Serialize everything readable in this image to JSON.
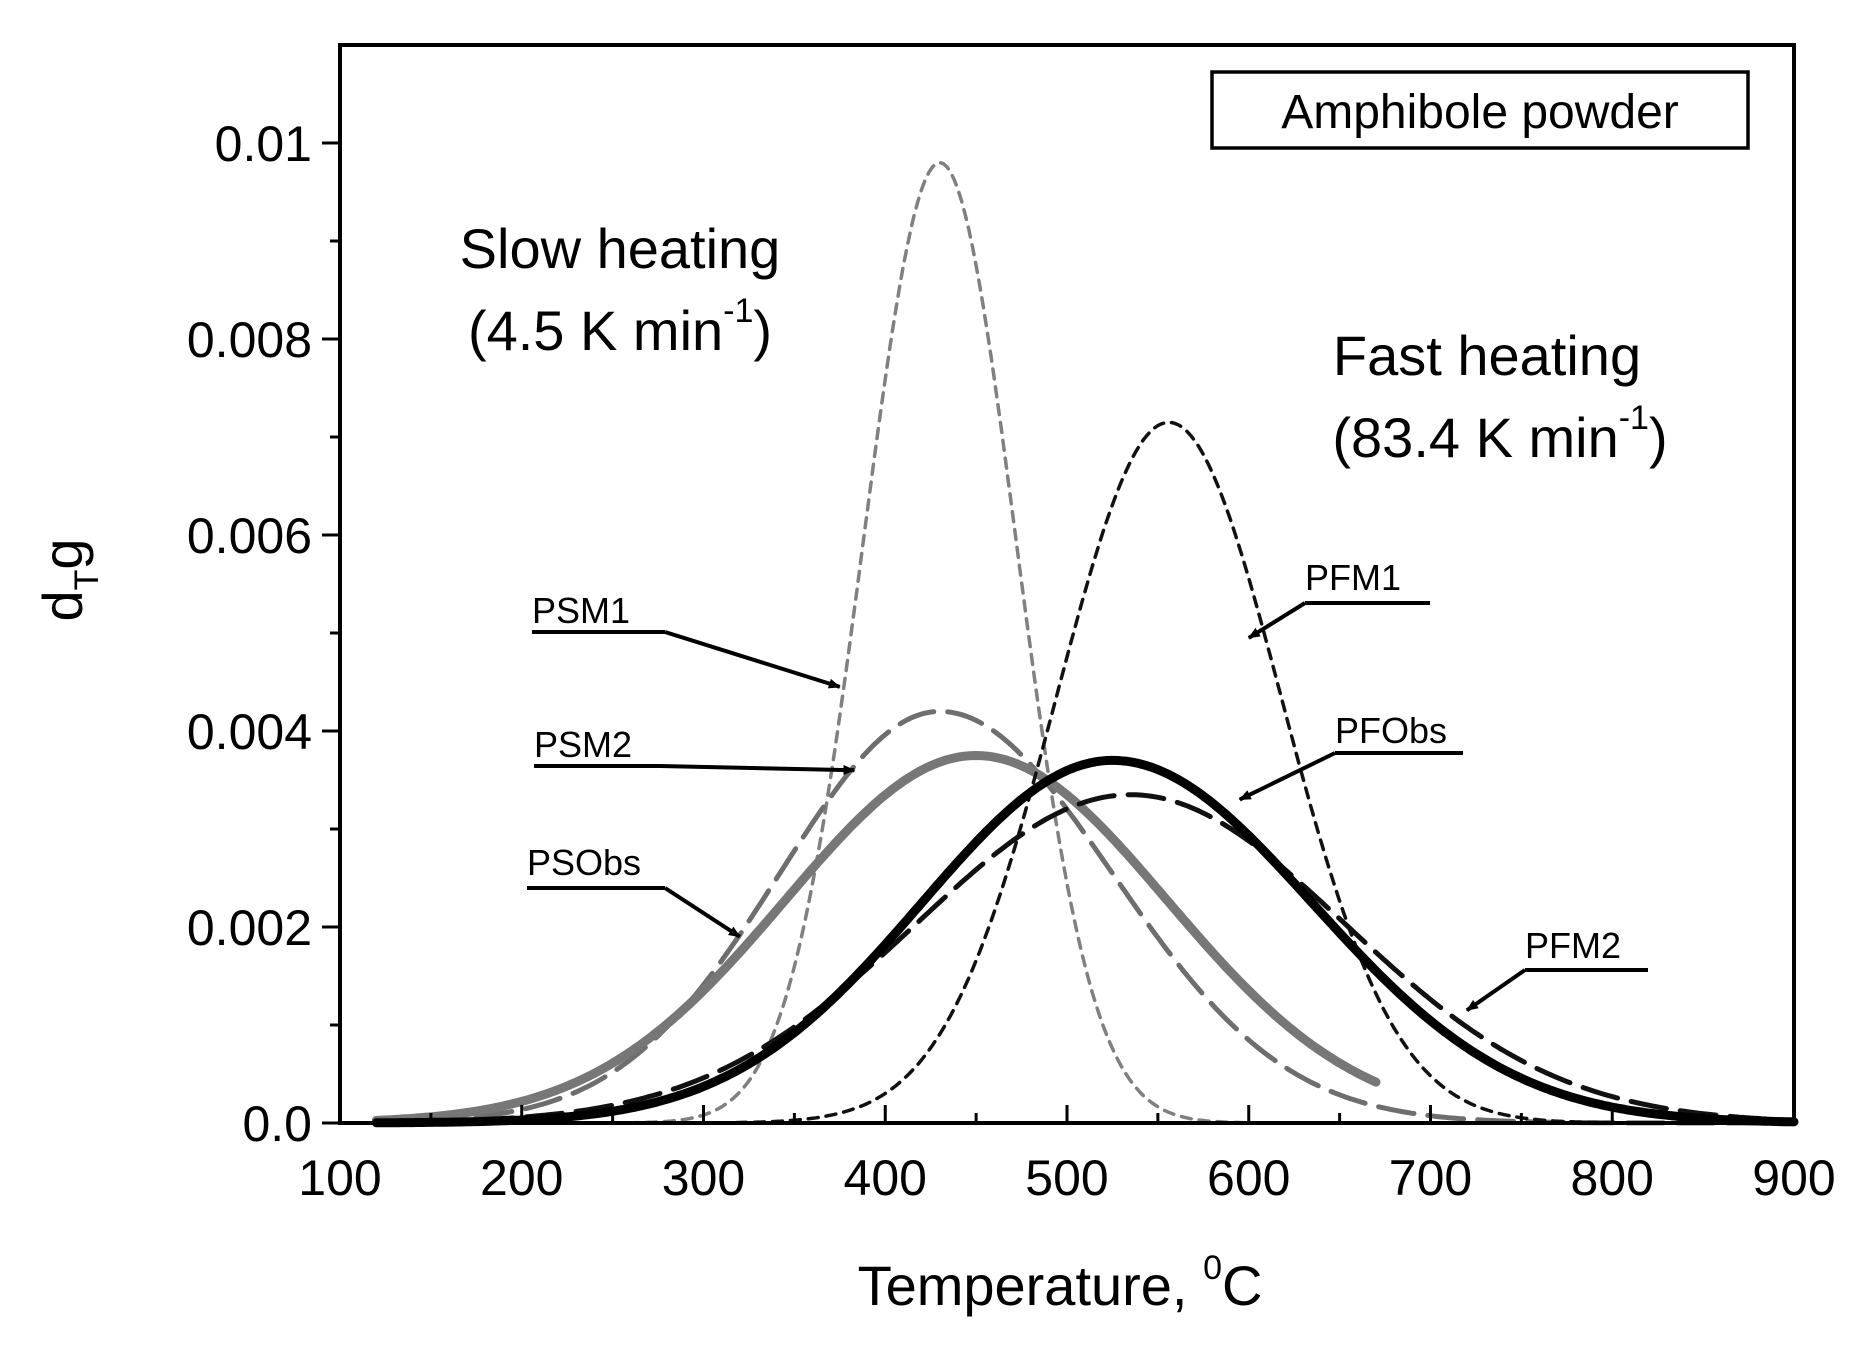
{
  "chart_data": {
    "type": "line",
    "xlabel": "Temperature, ",
    "xlabel_sup": "0",
    "xlabel_unit": "C",
    "ylabel_main": "d",
    "ylabel_sub": "T",
    "ylabel_end": "g",
    "xlim": [
      100,
      900
    ],
    "ylim": [
      0,
      0.011
    ],
    "xticks": [
      100,
      200,
      300,
      400,
      500,
      600,
      700,
      800,
      900
    ],
    "yticks": [
      0.0,
      0.002,
      0.004,
      0.006,
      0.008,
      0.01
    ],
    "ytick_labels": [
      "0.0",
      "0.002",
      "0.004",
      "0.006",
      "0.008",
      "0.01"
    ],
    "legend_box": "Amphibole powder",
    "annotations": [
      {
        "id": "slow1",
        "text": "Slow heating"
      },
      {
        "id": "slow2",
        "text": "(4.5 K min",
        "sup": "-1",
        "end": ")"
      },
      {
        "id": "fast1",
        "text": "Fast heating"
      },
      {
        "id": "fast2",
        "text": "(83.4  K min",
        "sup": "-1",
        "end": ")"
      }
    ],
    "series": [
      {
        "name": "PSM1",
        "color": "#808080",
        "style": "short-dash",
        "width": 3.5,
        "kind": "gauss",
        "amp": 0.0098,
        "mu": 430,
        "sigma": 42,
        "xmin": 120,
        "xmax": 900
      },
      {
        "name": "PSM2",
        "color": "#6e6e6e",
        "style": "long-dash",
        "width": 5,
        "kind": "skew",
        "amp": 0.0042,
        "mu": 430,
        "sl": 88,
        "sr": 95,
        "xmin": 120,
        "xmax": 900
      },
      {
        "name": "PSObs",
        "color": "#777777",
        "style": "solid",
        "width": 9,
        "kind": "skew",
        "amp": 0.00375,
        "mu": 450,
        "sl": 105,
        "sr": 105,
        "xmin": 120,
        "xmax": 670
      },
      {
        "name": "PFM1",
        "color": "#111111",
        "style": "short-dash",
        "width": 3.5,
        "kind": "gauss",
        "amp": 0.00715,
        "mu": 556,
        "sigma": 62,
        "xmin": 120,
        "xmax": 900
      },
      {
        "name": "PFM2",
        "color": "#111111",
        "style": "long-dash",
        "width": 5,
        "kind": "skew",
        "amp": 0.00335,
        "mu": 535,
        "sl": 118,
        "sr": 118,
        "xmin": 120,
        "xmax": 900
      },
      {
        "name": "PFObs",
        "color": "#000000",
        "style": "solid",
        "width": 9,
        "kind": "skew",
        "amp": 0.0037,
        "mu": 525,
        "sl": 105,
        "sr": 110,
        "xmin": 120,
        "xmax": 900
      }
    ],
    "curve_labels": [
      {
        "name": "PSM1",
        "text": "PSM1",
        "ax": 375,
        "ay": 0.00445
      },
      {
        "name": "PSM2",
        "text": "PSM2",
        "ax": 383,
        "ay": 0.0036
      },
      {
        "name": "PSObs",
        "text": "PSObs",
        "ax": 320,
        "ay": 0.0019
      },
      {
        "name": "PFM1",
        "text": "PFM1",
        "ax": 600,
        "ay": 0.00495
      },
      {
        "name": "PFObs",
        "text": "PFObs",
        "ax": 595,
        "ay": 0.0033
      },
      {
        "name": "PFM2",
        "text": "PFM2",
        "ax": 720,
        "ay": 0.00115
      }
    ]
  }
}
